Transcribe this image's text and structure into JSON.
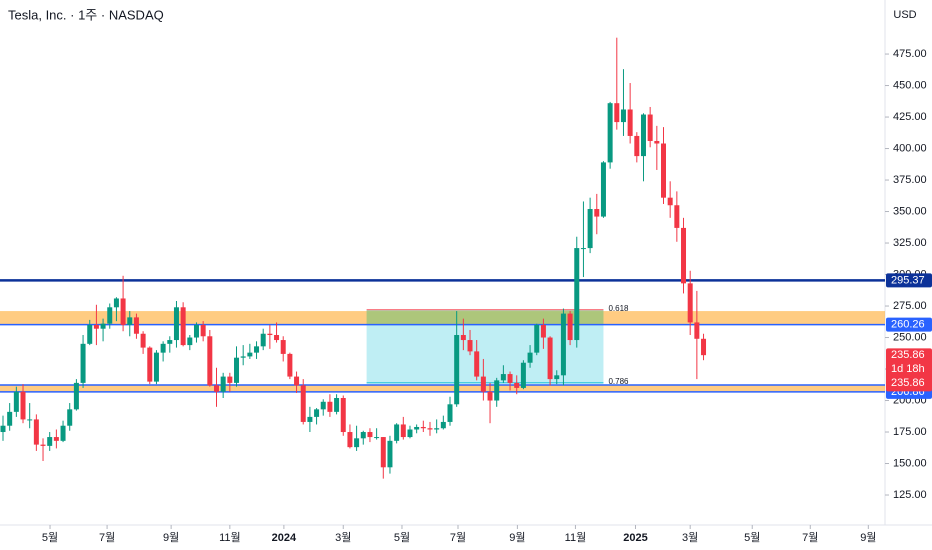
{
  "chart_data": {
    "type": "candlestick",
    "title": "Tesla, Inc. · 1주 · NASDAQ",
    "currency": "USD",
    "up_color": "#089981",
    "down_color": "#f23645",
    "open": [
      175,
      180,
      191,
      207,
      185,
      185,
      165,
      164,
      171,
      168,
      180,
      193,
      214,
      245,
      260,
      257,
      261,
      274,
      281,
      260,
      266,
      253,
      242,
      215,
      238,
      245,
      248,
      274,
      244,
      250,
      260,
      251,
      212,
      207,
      219,
      214,
      234,
      235,
      238,
      243,
      253,
      252,
      248,
      237,
      219,
      212,
      183,
      187,
      193,
      199,
      191,
      202,
      175,
      163,
      170,
      175,
      171,
      171,
      147,
      168,
      181,
      171,
      177,
      179,
      178,
      177,
      178,
      183,
      197,
      252,
      248,
      239,
      219,
      207,
      200,
      216,
      221,
      214,
      210,
      230,
      238,
      260,
      250,
      217,
      220,
      269,
      248,
      321,
      321,
      352,
      346,
      389,
      436,
      421,
      431,
      410,
      394,
      427,
      406,
      404,
      361,
      355,
      337,
      293,
      262,
      249
    ],
    "high": [
      188,
      198,
      211,
      213,
      198,
      189,
      170,
      175,
      177,
      184,
      198,
      217,
      252,
      264,
      276,
      265,
      277,
      282,
      299,
      271,
      269,
      255,
      243,
      240,
      247,
      251,
      279,
      278,
      252,
      262,
      263,
      256,
      226,
      222,
      222,
      243,
      244,
      245,
      247,
      257,
      260,
      262,
      251,
      238,
      223,
      217,
      195,
      194,
      201,
      205,
      205,
      204,
      181,
      180,
      176,
      178,
      178,
      171,
      172,
      182,
      187,
      180,
      181,
      184,
      183,
      185,
      188,
      203,
      271,
      265,
      256,
      248,
      233,
      214,
      218,
      228,
      223,
      220,
      232,
      244,
      261,
      265,
      251,
      224,
      273,
      271,
      330,
      358,
      361,
      364,
      390,
      437,
      488,
      463,
      452,
      413,
      428,
      433,
      418,
      417,
      374,
      366,
      345,
      303,
      287,
      253
    ],
    "low": [
      168,
      176,
      187,
      182,
      178,
      160,
      152,
      160,
      162,
      167,
      176,
      192,
      210,
      244,
      244,
      247,
      257,
      263,
      255,
      251,
      249,
      237,
      213,
      213,
      231,
      238,
      242,
      243,
      240,
      246,
      247,
      211,
      195,
      202,
      207,
      211,
      228,
      233,
      233,
      240,
      241,
      246,
      231,
      217,
      206,
      181,
      175,
      181,
      188,
      187,
      189,
      172,
      162,
      160,
      165,
      167,
      169,
      138,
      142,
      166,
      169,
      170,
      174,
      175,
      172,
      174,
      177,
      180,
      195,
      240,
      236,
      216,
      200,
      182,
      195,
      214,
      208,
      205,
      209,
      226,
      236,
      241,
      212,
      213,
      212,
      244,
      242,
      298,
      317,
      332,
      345,
      384,
      415,
      410,
      404,
      389,
      374,
      401,
      383,
      356,
      345,
      326,
      285,
      252,
      217,
      232
    ],
    "close": [
      180,
      191,
      207,
      185,
      185,
      165,
      164,
      171,
      168,
      180,
      193,
      214,
      245,
      260,
      257,
      261,
      274,
      281,
      260,
      266,
      253,
      242,
      215,
      238,
      245,
      248,
      274,
      244,
      250,
      260,
      251,
      212,
      207,
      219,
      214,
      234,
      235,
      238,
      243,
      253,
      252,
      248,
      237,
      219,
      212,
      183,
      187,
      193,
      199,
      191,
      202,
      175,
      163,
      170,
      175,
      171,
      171,
      147,
      168,
      181,
      171,
      177,
      179,
      178,
      177,
      178,
      183,
      197,
      252,
      248,
      239,
      219,
      207,
      200,
      216,
      221,
      214,
      210,
      230,
      238,
      260,
      250,
      217,
      220,
      269,
      248,
      321,
      321,
      352,
      346,
      389,
      436,
      421,
      431,
      410,
      394,
      427,
      406,
      404,
      361,
      355,
      337,
      293,
      262,
      249,
      236
    ],
    "xlim": [
      -0.45,
      132.2
    ],
    "ylim": [
      101.2,
      517.9
    ],
    "xticks": [
      {
        "value": 7.05,
        "label": "5월"
      },
      {
        "value": 15.6,
        "label": "7월"
      },
      {
        "value": 25.2,
        "label": "9월"
      },
      {
        "value": 34.0,
        "label": "11월"
      },
      {
        "value": 42.1,
        "label": "2024"
      },
      {
        "value": 51.0,
        "label": "3월"
      },
      {
        "value": 59.8,
        "label": "5월"
      },
      {
        "value": 68.2,
        "label": "7월"
      },
      {
        "value": 77.1,
        "label": "9월"
      },
      {
        "value": 85.8,
        "label": "11월"
      },
      {
        "value": 94.8,
        "label": "2025"
      },
      {
        "value": 103.0,
        "label": "3월"
      },
      {
        "value": 112.3,
        "label": "5월"
      },
      {
        "value": 121.0,
        "label": "7월"
      },
      {
        "value": 129.7,
        "label": "9월"
      }
    ],
    "yticks": [
      {
        "value": 125,
        "label": "125.00"
      },
      {
        "value": 150,
        "label": "150.00"
      },
      {
        "value": 175,
        "label": "175.00"
      },
      {
        "value": 200,
        "label": "200.00"
      },
      {
        "value": 225,
        "label": "225.00"
      },
      {
        "value": 250,
        "label": "250.00"
      },
      {
        "value": 275,
        "label": "275.00"
      },
      {
        "value": 300,
        "label": "300.00"
      },
      {
        "value": 325,
        "label": "325.00"
      },
      {
        "value": 350,
        "label": "350.00"
      },
      {
        "value": 375,
        "label": "375.00"
      },
      {
        "value": 400,
        "label": "400.00"
      },
      {
        "value": 425,
        "label": "425.00"
      },
      {
        "value": 450,
        "label": "450.00"
      },
      {
        "value": 475,
        "label": "475.00"
      }
    ],
    "zones": [
      {
        "range": [
          260.26,
          271
        ],
        "color": "#ffb74d"
      },
      {
        "range": [
          206.86,
          212.36
        ],
        "color": "#ffb74d"
      }
    ],
    "hlines": [
      {
        "value": 295.37,
        "color": "#0c3299"
      },
      {
        "value": 260.26,
        "color": "#2962ff"
      },
      {
        "value": 212.36,
        "color": "#2962ff"
      },
      {
        "value": 206.86,
        "color": "#2962ff"
      }
    ],
    "fib": {
      "xrange": [
        54.5,
        90
      ],
      "levels": [
        {
          "label": "0.618",
          "value": 272,
          "color": "#f7525f"
        },
        {
          "label": "0.786",
          "value": 214,
          "color": "#00bcd4"
        }
      ],
      "fill": "#00bcd4",
      "top_fill": "#8bc34a",
      "top_range": [
        260,
        272
      ]
    },
    "last": {
      "price": 235.86,
      "countdown": "1d 18h",
      "color": "#f23645"
    }
  }
}
